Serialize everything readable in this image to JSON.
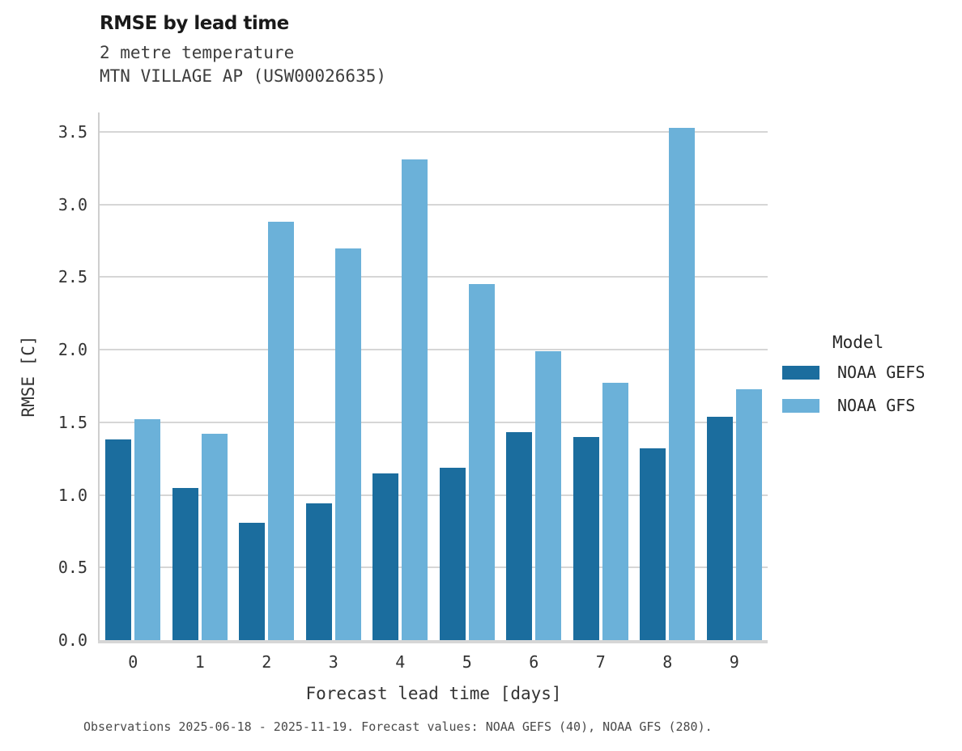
{
  "header": {
    "title": "RMSE by lead time",
    "subtitle_line1": "2 metre temperature",
    "subtitle_line2": "MTN VILLAGE AP (USW00026635)"
  },
  "chart_data": {
    "type": "bar",
    "title": "RMSE by lead time",
    "subtitle": "2 metre temperature — MTN VILLAGE AP (USW00026635)",
    "categories": [
      "0",
      "1",
      "2",
      "3",
      "4",
      "5",
      "6",
      "7",
      "8",
      "9"
    ],
    "series": [
      {
        "name": "NOAA GEFS",
        "color": "#1b6d9e",
        "values": [
          1.38,
          1.05,
          0.81,
          0.94,
          1.15,
          1.19,
          1.43,
          1.4,
          1.32,
          1.54
        ]
      },
      {
        "name": "NOAA GFS",
        "color": "#6bb1d9",
        "values": [
          1.52,
          1.42,
          2.88,
          2.7,
          3.31,
          2.45,
          1.99,
          1.77,
          3.53,
          1.73
        ]
      }
    ],
    "xlabel": "Forecast lead time [days]",
    "ylabel": "RMSE [C]",
    "ylim": [
      0.0,
      3.5
    ],
    "ytick_labels": [
      "0.0",
      "0.5",
      "1.0",
      "1.5",
      "2.0",
      "2.5",
      "3.0",
      "3.5"
    ],
    "grid": true,
    "legend_title": "Model",
    "legend_position": "right of plot, vertically centered"
  },
  "footer": {
    "caption": "Observations 2025-06-18 - 2025-11-19. Forecast values: NOAA GEFS (40), NOAA GFS (280)."
  },
  "colors": {
    "noaa_gefs": "#1b6d9e",
    "noaa_gfs": "#6bb1d9",
    "gridline": "#d6d6d6",
    "text_dark": "#1a1a1a",
    "text_axis": "#333333"
  }
}
